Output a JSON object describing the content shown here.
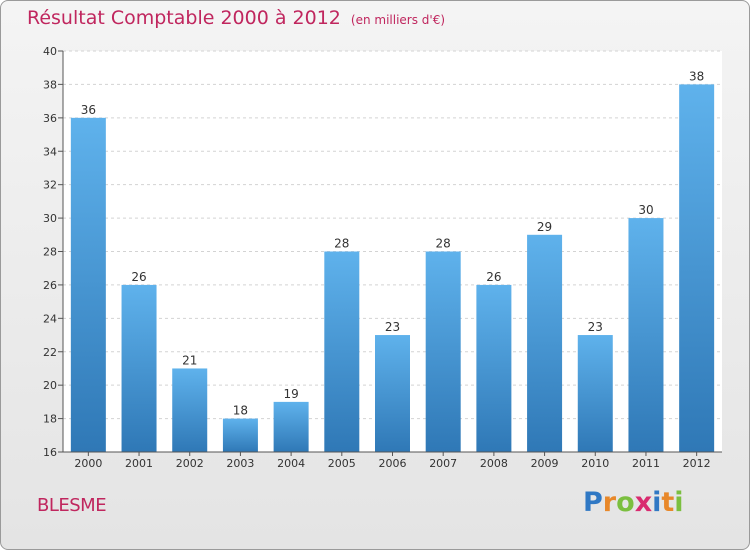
{
  "chart_data": {
    "type": "bar",
    "title": "Résultat Comptable 2000 à 2012",
    "subtitle": "(en milliers d'€)",
    "categories": [
      "2000",
      "2001",
      "2002",
      "2003",
      "2004",
      "2005",
      "2006",
      "2007",
      "2008",
      "2009",
      "2010",
      "2011",
      "2012"
    ],
    "values": [
      36,
      26,
      21,
      18,
      19,
      28,
      23,
      28,
      26,
      29,
      23,
      30,
      38
    ],
    "ylim": [
      16,
      40
    ],
    "yticks": [
      16,
      18,
      20,
      22,
      24,
      26,
      28,
      30,
      32,
      34,
      36,
      38,
      40
    ],
    "grid": true,
    "xlabel": "",
    "ylabel": ""
  },
  "footer": {
    "commune": "BLESME",
    "brand": [
      "P",
      "r",
      "o",
      "x",
      "i",
      "t",
      "i"
    ],
    "brand_colors": [
      "#2f78c4",
      "#e8882a",
      "#7bbf3f",
      "#d92b6f",
      "#2f78c4",
      "#e8882a",
      "#7bbf3f"
    ]
  },
  "colors": {
    "bar_top": "#5fb2ec",
    "bar_bottom": "#2f78b6",
    "title": "#c0265e",
    "axis_text": "#333333"
  }
}
